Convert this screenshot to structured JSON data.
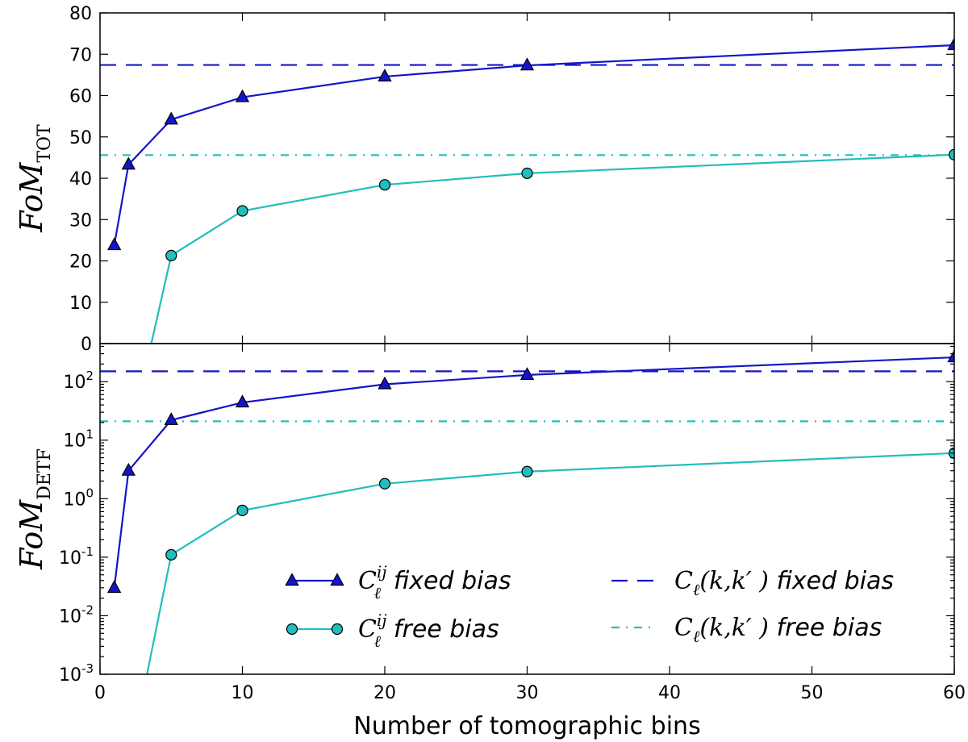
{
  "chart_data": [
    {
      "type": "line",
      "panel": "top",
      "ylabel": {
        "main": "FoM",
        "sub": "TOT"
      },
      "yscale": "linear",
      "ylim": [
        0,
        80
      ],
      "yticks": [
        0,
        10,
        20,
        30,
        40,
        50,
        60,
        70,
        80
      ],
      "ytick_labels": [
        "0",
        "10",
        "20",
        "30",
        "40",
        "50",
        "60",
        "70",
        "80"
      ],
      "xlim": [
        0,
        60
      ],
      "colors": {
        "fixed": "#1515c8",
        "free": "#22bdbd"
      },
      "series": [
        {
          "key": "fixed",
          "x": [
            1,
            2,
            5,
            10,
            20,
            30,
            60
          ],
          "y": [
            23.8,
            43.3,
            54.2,
            59.6,
            64.6,
            67.3,
            72.2
          ],
          "marker": "triangle"
        },
        {
          "key": "free",
          "x": [
            3.6,
            5,
            10,
            20,
            30,
            60
          ],
          "y": [
            0,
            21.3,
            32.1,
            38.4,
            41.2,
            45.7
          ],
          "marker": "circle",
          "marked_from": 1
        }
      ],
      "hlines": [
        {
          "key": "fixed-ref",
          "y": 67.4,
          "style": "dashed"
        },
        {
          "key": "free-ref",
          "y": 45.6,
          "style": "dashdot"
        }
      ]
    },
    {
      "type": "line",
      "panel": "bottom",
      "ylabel": {
        "main": "FoM",
        "sub": "DETF"
      },
      "yscale": "log",
      "ylim_log10": [
        -3,
        2.65
      ],
      "yticks_exp": [
        -3,
        -2,
        -1,
        0,
        1,
        2
      ],
      "ytick_labels": [
        {
          "base": "10",
          "exp": "-3"
        },
        {
          "base": "10",
          "exp": "-2"
        },
        {
          "base": "10",
          "exp": "-1"
        },
        {
          "base": "10",
          "exp": "0"
        },
        {
          "base": "10",
          "exp": "1"
        },
        {
          "base": "10",
          "exp": "2"
        }
      ],
      "xlim": [
        0,
        60
      ],
      "xticks": [
        0,
        10,
        20,
        30,
        40,
        50,
        60
      ],
      "xtick_labels": [
        "0",
        "10",
        "20",
        "30",
        "40",
        "50",
        "60"
      ],
      "xlabel": "Number of tomographic bins",
      "colors": {
        "fixed": "#1515c8",
        "free": "#22bdbd"
      },
      "series": [
        {
          "key": "fixed",
          "x": [
            1,
            2,
            5,
            10,
            20,
            30,
            60
          ],
          "y": [
            0.03,
            3.0,
            22,
            44,
            90,
            130,
            260
          ],
          "marker": "triangle"
        },
        {
          "key": "free",
          "x": [
            3.3,
            5,
            10,
            20,
            30,
            60
          ],
          "y": [
            0.001,
            0.11,
            0.63,
            1.8,
            2.9,
            6.0
          ],
          "marker": "circle",
          "marked_from": 1
        }
      ],
      "hlines": [
        {
          "key": "fixed-ref",
          "y": 150,
          "style": "dashed"
        },
        {
          "key": "free-ref",
          "y": 21,
          "style": "dashdot"
        }
      ]
    }
  ],
  "legend": {
    "placement": "lower-right",
    "entries": [
      {
        "key": "fixed",
        "math": "C",
        "sub": "ℓ",
        "sup": "ij",
        "text": "fixed bias"
      },
      {
        "key": "free",
        "math": "C",
        "sub": "ℓ",
        "sup": "ij",
        "text": "free bias"
      },
      {
        "key": "fixed-ref",
        "math": "C",
        "sub": "ℓ",
        "args": "(k,k′ )",
        "text": "fixed bias"
      },
      {
        "key": "free-ref",
        "math": "C",
        "sub": "ℓ",
        "args": "(k,k′ )",
        "text": "free bias"
      }
    ]
  }
}
